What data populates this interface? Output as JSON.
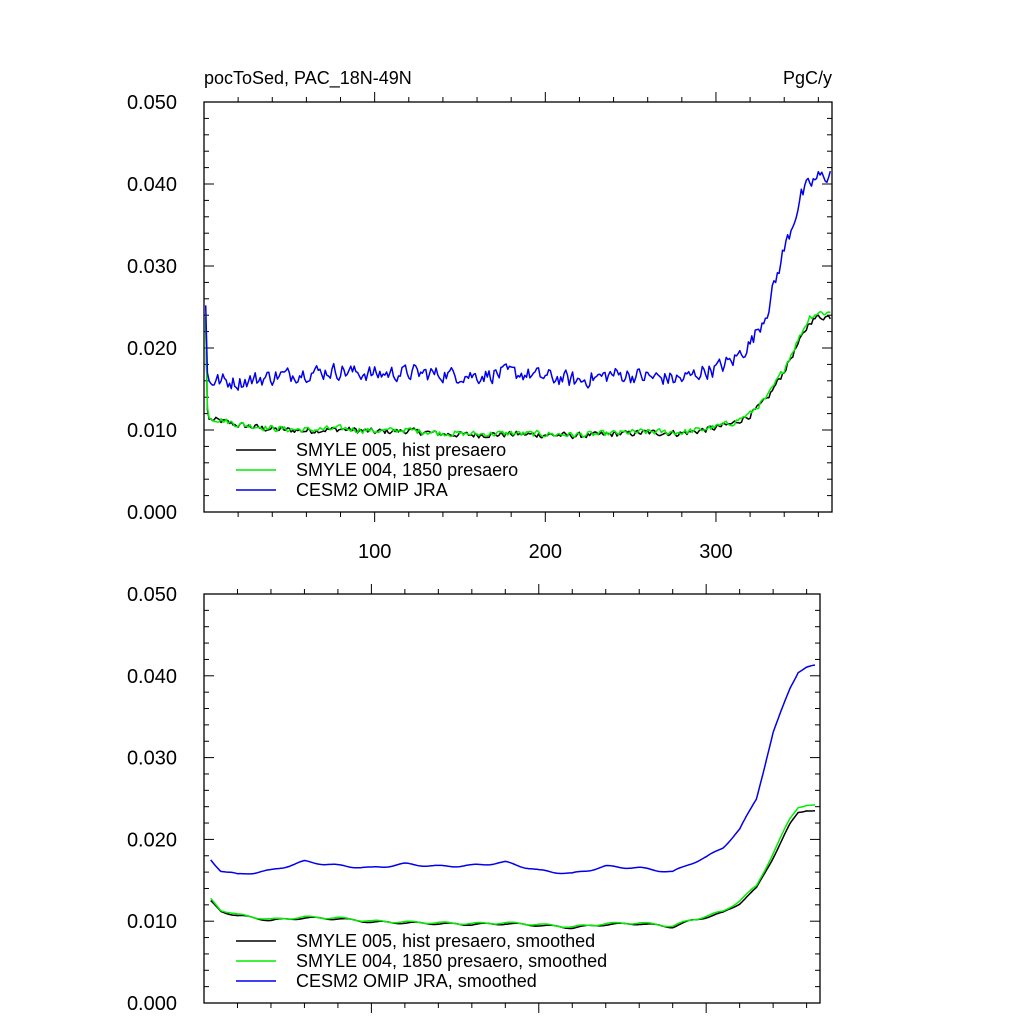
{
  "figure": {
    "left_title": "pocToSed, PAC_18N-49N",
    "right_title": "PgC/y"
  },
  "chart_data": [
    {
      "type": "line",
      "title": "pocToSed, PAC_18N-49N",
      "units": "PgC/y",
      "xlim": [
        0,
        368
      ],
      "ylim": [
        0,
        0.05
      ],
      "xticks": [
        100,
        200,
        300
      ],
      "xtick_labels": [
        "100",
        "200",
        "300"
      ],
      "yticks": [
        0,
        0.01,
        0.02,
        0.03,
        0.04,
        0.05
      ],
      "ytick_labels": [
        "0.000",
        "0.010",
        "0.020",
        "0.030",
        "0.040",
        "0.050"
      ],
      "legend_position": "bottom-left",
      "x_range": [
        1,
        367
      ],
      "series": [
        {
          "name": "SMYLE 005, hist presaero",
          "color": "#000000",
          "x": [
            1,
            2,
            3,
            10,
            20,
            40,
            60,
            80,
            100,
            120,
            140,
            160,
            180,
            200,
            220,
            240,
            260,
            280,
            290,
            300,
            310,
            320,
            330,
            340,
            350,
            355,
            360,
            367
          ],
          "y": [
            0.0235,
            0.0125,
            0.0113,
            0.0111,
            0.0106,
            0.0101,
            0.0099,
            0.0101,
            0.0098,
            0.0099,
            0.0095,
            0.0094,
            0.0095,
            0.0094,
            0.0093,
            0.0095,
            0.0097,
            0.0096,
            0.0099,
            0.0103,
            0.0108,
            0.0118,
            0.0138,
            0.0172,
            0.0212,
            0.0232,
            0.0238,
            0.0238
          ]
        },
        {
          "name": "SMYLE 004, 1850 presaero",
          "color": "#00ee00",
          "x": [
            1,
            2,
            3,
            10,
            20,
            40,
            60,
            80,
            100,
            120,
            140,
            160,
            180,
            200,
            220,
            240,
            260,
            280,
            290,
            300,
            310,
            320,
            330,
            340,
            350,
            355,
            360,
            367
          ],
          "y": [
            0.0238,
            0.0128,
            0.0115,
            0.0112,
            0.0107,
            0.0102,
            0.01,
            0.0102,
            0.0099,
            0.01,
            0.0096,
            0.0095,
            0.0096,
            0.0095,
            0.0094,
            0.0096,
            0.0098,
            0.0097,
            0.01,
            0.0104,
            0.0109,
            0.012,
            0.014,
            0.0175,
            0.0218,
            0.0238,
            0.0243,
            0.0243
          ]
        },
        {
          "name": "CESM2 OMIP JRA",
          "color": "#0000ee",
          "x": [
            1,
            2,
            3,
            10,
            20,
            40,
            60,
            80,
            100,
            120,
            140,
            160,
            180,
            200,
            220,
            240,
            260,
            280,
            290,
            300,
            310,
            320,
            330,
            340,
            350,
            355,
            360,
            367
          ],
          "y": [
            0.0252,
            0.017,
            0.016,
            0.016,
            0.0158,
            0.0165,
            0.017,
            0.0172,
            0.0168,
            0.017,
            0.0168,
            0.0166,
            0.017,
            0.0165,
            0.016,
            0.0168,
            0.0165,
            0.0162,
            0.017,
            0.0175,
            0.0185,
            0.0205,
            0.0245,
            0.032,
            0.0385,
            0.04,
            0.0408,
            0.0412
          ]
        }
      ]
    },
    {
      "type": "line",
      "xlim": [
        0,
        368
      ],
      "ylim": [
        0,
        0.05
      ],
      "yticks": [
        0,
        0.01,
        0.02,
        0.03,
        0.04,
        0.05
      ],
      "ytick_labels": [
        "0.000",
        "0.010",
        "0.020",
        "0.030",
        "0.040",
        "0.050"
      ],
      "legend_position": "bottom-left",
      "x_range": [
        4,
        365
      ],
      "series": [
        {
          "name": "SMYLE 005, hist presaero, smoothed",
          "color": "#000000",
          "x": [
            4,
            10,
            20,
            40,
            60,
            80,
            100,
            120,
            140,
            160,
            180,
            200,
            220,
            240,
            260,
            280,
            290,
            300,
            310,
            320,
            330,
            340,
            350,
            355,
            360,
            365
          ],
          "y": [
            0.0124,
            0.0112,
            0.0107,
            0.0101,
            0.0104,
            0.0103,
            0.0099,
            0.0098,
            0.0097,
            0.0096,
            0.0097,
            0.0095,
            0.0092,
            0.0096,
            0.0097,
            0.0093,
            0.01,
            0.0105,
            0.011,
            0.0122,
            0.014,
            0.0178,
            0.0218,
            0.0233,
            0.0236,
            0.0235
          ]
        },
        {
          "name": "SMYLE 004, 1850 presaero, smoothed",
          "color": "#00ee00",
          "x": [
            4,
            10,
            20,
            40,
            60,
            80,
            100,
            120,
            140,
            160,
            180,
            200,
            220,
            240,
            260,
            280,
            290,
            300,
            310,
            320,
            330,
            340,
            350,
            355,
            360,
            365
          ],
          "y": [
            0.0127,
            0.0114,
            0.0108,
            0.0102,
            0.0105,
            0.0104,
            0.01,
            0.0099,
            0.0098,
            0.0097,
            0.0098,
            0.0096,
            0.0093,
            0.0097,
            0.0098,
            0.0094,
            0.0101,
            0.0106,
            0.0112,
            0.0125,
            0.0143,
            0.0183,
            0.0225,
            0.024,
            0.0242,
            0.0241
          ]
        },
        {
          "name": "CESM2 OMIP JRA, smoothed",
          "color": "#0000ee",
          "x": [
            4,
            10,
            20,
            40,
            60,
            80,
            100,
            120,
            140,
            160,
            180,
            200,
            220,
            240,
            260,
            280,
            290,
            300,
            310,
            320,
            330,
            340,
            350,
            355,
            360,
            365
          ],
          "y": [
            0.0175,
            0.0162,
            0.0157,
            0.0162,
            0.0173,
            0.0168,
            0.0165,
            0.017,
            0.0167,
            0.0168,
            0.0172,
            0.0162,
            0.0158,
            0.0167,
            0.0165,
            0.016,
            0.017,
            0.0178,
            0.019,
            0.0212,
            0.025,
            0.033,
            0.0385,
            0.0405,
            0.041,
            0.0412
          ]
        }
      ]
    }
  ]
}
